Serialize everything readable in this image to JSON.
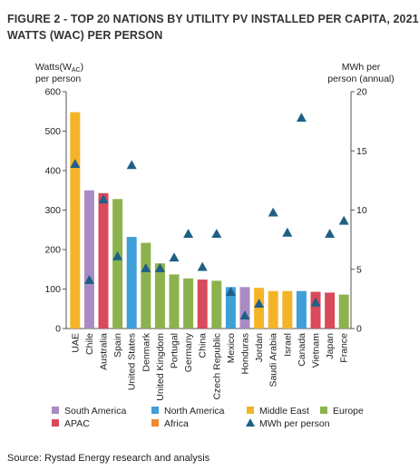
{
  "figure": {
    "title_line1": "FIGURE 2 - TOP 20 NATIONS BY UTILITY PV INSTALLED PER CAPITA, 2021",
    "title_line2": "WATTS (WAC) PER PERSON",
    "source": "Source: Rystad Energy research and analysis"
  },
  "colors": {
    "South America": "#a98bc4",
    "North America": "#3f9fd8",
    "Middle East": "#f4b428",
    "Europe": "#8cb24e",
    "APAC": "#d94a5a",
    "Africa": "#f08a2c",
    "marker": "#1f5f86",
    "axis": "#555555",
    "text": "#222222"
  },
  "chart_data": {
    "type": "bar",
    "title": "",
    "categories": [
      "UAE",
      "Chile",
      "Australia",
      "Spain",
      "United States",
      "Denmark",
      "United Kingdom",
      "Portugal",
      "Germany",
      "China",
      "Czech Republic",
      "Mexico",
      "Honduras",
      "Jordan",
      "Saudi Arabia",
      "Israel",
      "Canada",
      "Vietnam",
      "Japan",
      "France"
    ],
    "regions": [
      "Middle East",
      "South America",
      "APAC",
      "Europe",
      "North America",
      "Europe",
      "Europe",
      "Europe",
      "Europe",
      "APAC",
      "Europe",
      "North America",
      "South America",
      "Middle East",
      "Middle East",
      "Middle East",
      "North America",
      "APAC",
      "APAC",
      "Europe"
    ],
    "series": [
      {
        "name": "Watts per person",
        "axis": "left",
        "values": [
          548,
          350,
          343,
          328,
          232,
          217,
          165,
          137,
          127,
          124,
          121,
          105,
          105,
          103,
          95,
          95,
          95,
          93,
          91,
          86
        ]
      },
      {
        "name": "MWh per person",
        "axis": "right",
        "values": [
          13.9,
          4.1,
          10.9,
          6.1,
          13.8,
          5.1,
          5.1,
          6.0,
          8.0,
          5.2,
          8.0,
          3.1,
          1.1,
          2.1,
          9.8,
          8.1,
          17.8,
          2.2,
          8.0,
          9.1
        ]
      }
    ],
    "ylabel_left_line1": "Watts(W",
    "ylabel_left_sub": "AC",
    "ylabel_left_close": ")",
    "ylabel_left_line2": "per person",
    "ylabel_right_line1": "MWh per",
    "ylabel_right_line2": "person (annual)",
    "ylim_left": [
      0,
      600
    ],
    "yticks_left": [
      0,
      100,
      200,
      300,
      400,
      500,
      600
    ],
    "ylim_right": [
      0,
      20
    ],
    "yticks_right": [
      0,
      5,
      10,
      15,
      20
    ],
    "grid": false,
    "legend": {
      "placement": "bottom",
      "items": [
        {
          "label": "South America",
          "kind": "square",
          "color_key": "South America"
        },
        {
          "label": "North America",
          "kind": "square",
          "color_key": "North America"
        },
        {
          "label": "Middle East",
          "kind": "square",
          "color_key": "Middle East"
        },
        {
          "label": "Europe",
          "kind": "square",
          "color_key": "Europe"
        },
        {
          "label": "APAC",
          "kind": "square",
          "color_key": "APAC"
        },
        {
          "label": "Africa",
          "kind": "square",
          "color_key": "Africa"
        },
        {
          "label": "MWh per person",
          "kind": "triangle",
          "color_key": "marker"
        }
      ]
    }
  }
}
